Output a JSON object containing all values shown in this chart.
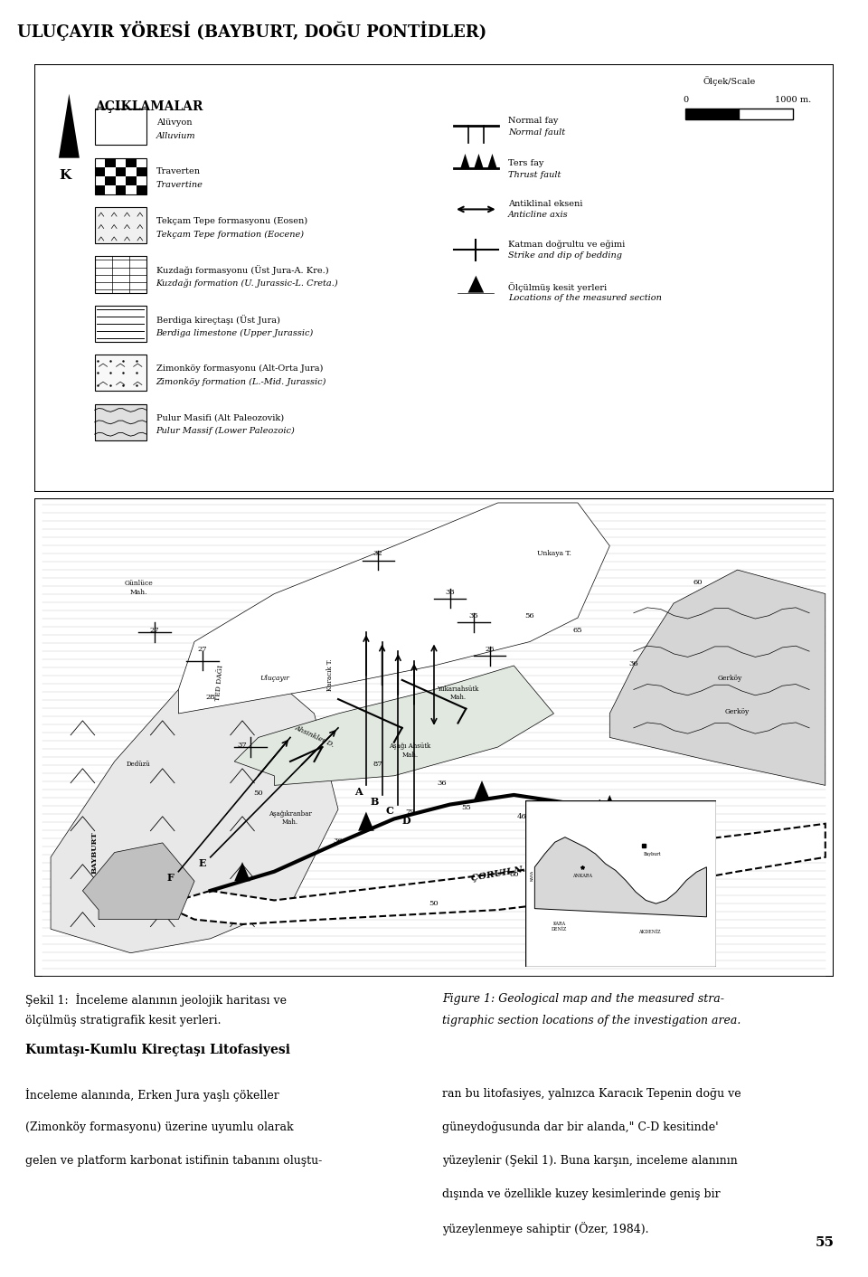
{
  "page_title": "ULUÇAYIR YÖRESİ (BAYBURT, DOĞU PONTİDLER)",
  "figure_caption_left_1": "Şekil 1:  İnceleme alanının jeolojik haritası ve",
  "figure_caption_left_2": "ölçülmüş stratigrafik kesit yerleri.",
  "figure_caption_right_1": "Figure 1: Geological map and the measured stra-",
  "figure_caption_right_2": "tigraphic section locations of the investigation area.",
  "section_title": "Kumtaşı-Kumlu Kireçtaşı Litofasiyesi",
  "body_left_lines": [
    "İnceleme alanında, Erken Jura yaşlı çökeller",
    "(Zimonköy formasyonu) üzerine uyumlu olarak",
    "gelen ve platform karbonat istifinin tabanını oluştu-"
  ],
  "body_right_lines": [
    "ran bu litofasiyes, yalnızca Karacık Tepenin doğu ve",
    "güneydoğusunda dar bir alanda,\" C-D kesitinde'",
    "yüzeylenir (Şekil 1). Buna karşın, inceleme alanının",
    "dışında ve özellikle kuzey kesimlerinde geniş bir",
    "yüzeylenmeye sahiptir (Özer, 1984)."
  ],
  "page_number": "55",
  "legend_title": "AÇIKLAMALAR",
  "background_color": "#ffffff"
}
